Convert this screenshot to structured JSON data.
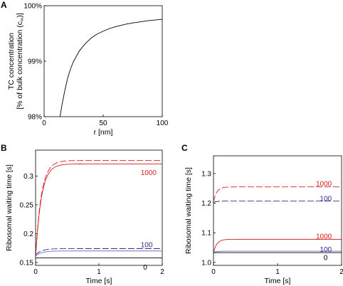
{
  "chart_data": [
    {
      "panel": "A",
      "type": "line",
      "xlabel": "r [nm]",
      "ylabel_line1": "TC concentration",
      "ylabel_line2_prefix": "[% of bulk concentration (c",
      "ylabel_line2_sub": "∞",
      "ylabel_line2_suffix": ")]",
      "xlim": [
        0,
        100
      ],
      "ylim": [
        98,
        100
      ],
      "xticks": [
        0,
        50,
        100
      ],
      "xtick_labels": [
        "0",
        "50",
        "100"
      ],
      "yticks": [
        98,
        99,
        100
      ],
      "ytick_labels": [
        "98%",
        "99%",
        "100%"
      ],
      "series": [
        {
          "color": "#000000",
          "x": [
            13.5,
            15,
            17.5,
            20,
            22.5,
            25,
            30,
            35,
            40,
            45,
            50,
            55,
            60,
            65,
            70,
            75,
            80,
            85,
            90,
            95,
            100
          ],
          "y": [
            98.0,
            98.2,
            98.47,
            98.7,
            98.87,
            99.0,
            99.19,
            99.32,
            99.42,
            99.49,
            99.54,
            99.585,
            99.62,
            99.645,
            99.67,
            99.69,
            99.705,
            99.72,
            99.735,
            99.745,
            99.755
          ]
        }
      ]
    },
    {
      "panel": "B",
      "type": "line",
      "xlabel": "Time [s]",
      "ylabel": "Ribosomal waiting time [s]",
      "xlim": [
        0,
        2
      ],
      "ylim": [
        0.145,
        0.345
      ],
      "xticks": [
        0,
        1,
        2
      ],
      "xtick_labels": [
        "0",
        "1",
        "2"
      ],
      "yticks": [
        0.15,
        0.2,
        0.25,
        0.3
      ],
      "ytick_labels": [
        "0.15",
        "0.2",
        "0.25",
        "0.3"
      ],
      "series": [
        {
          "color": "#d62020",
          "dashed": true,
          "base": 0.16,
          "plateau": 0.327,
          "tau": 0.09
        },
        {
          "color": "#d62020",
          "dashed": false,
          "base": 0.158,
          "plateau": 0.321,
          "tau": 0.09
        },
        {
          "color": "#2b2b8e",
          "dashed": true,
          "base": 0.163,
          "plateau": 0.174,
          "tau": 0.09
        },
        {
          "color": "#6e70b8",
          "dashed": false,
          "base": 0.161,
          "plateau": 0.17,
          "tau": 0.09
        },
        {
          "color": "#000000",
          "dashed": false,
          "base": 0.158,
          "plateau": 0.158,
          "tau": 0.09
        }
      ],
      "annotations": [
        {
          "text": "1000",
          "x": 1.66,
          "y": 0.306,
          "color": "#d62020"
        },
        {
          "text": "100",
          "x": 1.66,
          "y": 0.181,
          "color": "#2b2b8e"
        },
        {
          "text": "0",
          "x": 1.7,
          "y": 0.142,
          "color": "#000000"
        }
      ]
    },
    {
      "panel": "C",
      "type": "line",
      "xlabel": "Time [s]",
      "ylabel": "Ribosomal waiting time [s]",
      "xlim": [
        0,
        2
      ],
      "ylim": [
        0.99,
        1.36
      ],
      "xticks": [
        0,
        1,
        2
      ],
      "xtick_labels": [
        "0",
        "1",
        "2"
      ],
      "yticks": [
        1.0,
        1.1,
        1.2,
        1.3
      ],
      "ytick_labels": [
        "1.0",
        "1.1",
        "1.2",
        "1.3"
      ],
      "series": [
        {
          "color": "#d62020",
          "dashed": true,
          "base": 1.205,
          "plateau": 1.255,
          "tau": 0.05
        },
        {
          "color": "#2b2b8e",
          "dashed": true,
          "base": 1.203,
          "plateau": 1.207,
          "tau": 0.05
        },
        {
          "color": "#d62020",
          "dashed": false,
          "base": 1.032,
          "plateau": 1.078,
          "tau": 0.05
        },
        {
          "color": "#6e70b8",
          "dashed": false,
          "base": 1.034,
          "plateau": 1.038,
          "tau": 0.05
        },
        {
          "color": "#000000",
          "dashed": false,
          "base": 1.033,
          "plateau": 1.033,
          "tau": 0.05
        }
      ],
      "annotations": [
        {
          "text": "1000",
          "x": 1.6,
          "y": 1.266,
          "color": "#d62020"
        },
        {
          "text": "100",
          "x": 1.66,
          "y": 1.216,
          "color": "#2b2b8e"
        },
        {
          "text": "1000",
          "x": 1.6,
          "y": 1.088,
          "color": "#d62020"
        },
        {
          "text": "100",
          "x": 1.66,
          "y": 1.044,
          "color": "#2b2b8e"
        },
        {
          "text": "0",
          "x": 1.72,
          "y": 1.017,
          "color": "#000000"
        }
      ]
    }
  ],
  "panel_labels": {
    "a": "A",
    "b": "B",
    "c": "C"
  }
}
